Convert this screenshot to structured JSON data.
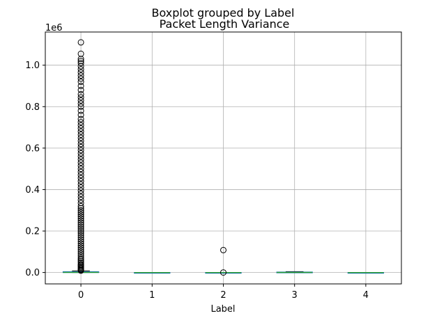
{
  "chart_data": {
    "type": "boxplot",
    "suptitle": "Boxplot grouped by Label",
    "title": "Packet Length Variance",
    "xlabel": "Label",
    "ylabel": "",
    "y_offset_label": "1e6",
    "scale": 1000000,
    "categories": [
      "0",
      "1",
      "2",
      "3",
      "4"
    ],
    "ylim": [
      -55000,
      1160000
    ],
    "yticks": [
      0,
      200000,
      400000,
      600000,
      800000,
      1000000
    ],
    "ytick_labels": [
      "0.0",
      "0.2",
      "0.4",
      "0.6",
      "0.8",
      "1.0"
    ],
    "grid": true,
    "colors": {
      "box": "#1f77b4",
      "median": "#2ca02c",
      "whisker": "#000000",
      "flier": "#000000",
      "grid": "#b0b0b0"
    },
    "boxes": [
      {
        "label": "0",
        "q1": 0,
        "median": 500,
        "q3": 3500,
        "whisker_low": 0,
        "whisker_high": 8000,
        "fliers": [
          9000,
          12000,
          15000,
          20000,
          25000,
          30000,
          35000,
          40000,
          48000,
          55000,
          62000,
          70000,
          80000,
          90000,
          100000,
          110000,
          120000,
          130000,
          140000,
          150000,
          160000,
          170000,
          180000,
          190000,
          200000,
          210000,
          220000,
          230000,
          240000,
          250000,
          260000,
          270000,
          280000,
          290000,
          300000,
          310000,
          320000,
          335000,
          350000,
          365000,
          380000,
          395000,
          410000,
          425000,
          440000,
          455000,
          470000,
          485000,
          500000,
          515000,
          530000,
          545000,
          560000,
          575000,
          590000,
          605000,
          620000,
          635000,
          650000,
          665000,
          680000,
          695000,
          710000,
          725000,
          740000,
          760000,
          780000,
          800000,
          815000,
          830000,
          845000,
          860000,
          880000,
          900000,
          920000,
          935000,
          950000,
          965000,
          980000,
          995000,
          1010000,
          1020000,
          1030000,
          1055000,
          1110000
        ]
      },
      {
        "label": "1",
        "q1": 0,
        "median": 0,
        "q3": 0,
        "whisker_low": 0,
        "whisker_high": 0,
        "fliers": []
      },
      {
        "label": "2",
        "q1": 0,
        "median": 0,
        "q3": 0,
        "whisker_low": 0,
        "whisker_high": 0,
        "fliers": [
          0,
          108000
        ]
      },
      {
        "label": "3",
        "q1": 0,
        "median": 500,
        "q3": 2000,
        "whisker_low": 0,
        "whisker_high": 4000,
        "fliers": []
      },
      {
        "label": "4",
        "q1": 0,
        "median": 0,
        "q3": 0,
        "whisker_low": 0,
        "whisker_high": 0,
        "fliers": []
      }
    ]
  }
}
